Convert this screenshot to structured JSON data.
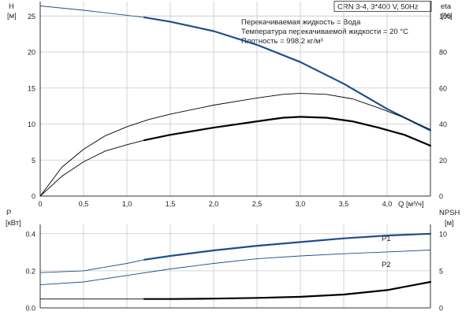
{
  "header": {
    "model": "CRN 3-4, 3*400 V, 50Hz",
    "notes": [
      "Перекачиваемая жидкость = Вода",
      "Температура перекачиваемой жидкости = 20 °C",
      "Плотность = 998.2 кг/м³"
    ]
  },
  "chart_data": [
    {
      "type": "line",
      "x_axis": {
        "label": "Q [м³/ч]",
        "range": [
          0,
          4.5
        ],
        "ticks": [
          "0",
          "0,5",
          "1,0",
          "1,5",
          "2,0",
          "2,5",
          "3,0",
          "3,5",
          "4,0"
        ],
        "tick_values": [
          0,
          0.5,
          1.0,
          1.5,
          2.0,
          2.5,
          3.0,
          3.5,
          4.0
        ]
      },
      "y_left": {
        "label_top": "H",
        "label_unit": "[м]",
        "range": [
          0,
          27
        ],
        "ticks": [
          "0",
          "5",
          "10",
          "15",
          "20",
          "25"
        ],
        "tick_values": [
          0,
          5,
          10,
          15,
          20,
          25
        ]
      },
      "y_right": {
        "label_top": "eta",
        "label_unit": "[%]",
        "range": [
          0,
          108
        ],
        "ticks": [
          "0",
          "20",
          "40",
          "60",
          "80",
          "100"
        ],
        "tick_values": [
          0,
          20,
          40,
          60,
          80,
          100
        ]
      },
      "series": [
        {
          "axis": "left",
          "color": "#1f4e8c",
          "style": "thin",
          "points": [
            [
              0,
              26.4
            ],
            [
              0.5,
              25.8
            ],
            [
              1.0,
              25.1
            ],
            [
              1.2,
              24.8
            ]
          ]
        },
        {
          "axis": "left",
          "color": "#1f4e8c",
          "style": "bold",
          "points": [
            [
              1.2,
              24.8
            ],
            [
              1.5,
              24.2
            ],
            [
              2.0,
              22.9
            ],
            [
              2.5,
              21.0
            ],
            [
              3.0,
              18.6
            ],
            [
              3.5,
              15.6
            ],
            [
              4.0,
              12.1
            ],
            [
              4.5,
              9.1
            ]
          ]
        },
        {
          "axis": "right",
          "color": "#000000",
          "style": "thin",
          "points": [
            [
              0,
              0
            ],
            [
              0.25,
              16
            ],
            [
              0.5,
              26
            ],
            [
              0.75,
              33.5
            ],
            [
              1.0,
              38.5
            ],
            [
              1.25,
              42.5
            ],
            [
              1.5,
              45.5
            ],
            [
              2.0,
              50.5
            ],
            [
              2.5,
              54.5
            ],
            [
              2.8,
              56.5
            ],
            [
              3.0,
              57
            ],
            [
              3.3,
              56.5
            ],
            [
              3.6,
              54
            ],
            [
              3.9,
              49
            ],
            [
              4.2,
              43.5
            ],
            [
              4.5,
              37
            ]
          ]
        },
        {
          "axis": "right",
          "color": "#000000",
          "style": "thin",
          "points": [
            [
              0,
              0
            ],
            [
              0.25,
              11
            ],
            [
              0.5,
              19
            ],
            [
              0.75,
              25
            ],
            [
              1.0,
              28.5
            ],
            [
              1.2,
              31
            ]
          ]
        },
        {
          "axis": "right",
          "color": "#000000",
          "style": "bold",
          "points": [
            [
              1.2,
              31
            ],
            [
              1.5,
              34
            ],
            [
              2.0,
              38
            ],
            [
              2.5,
              41.5
            ],
            [
              2.8,
              43.5
            ],
            [
              3.0,
              44
            ],
            [
              3.3,
              43.5
            ],
            [
              3.6,
              41.5
            ],
            [
              3.9,
              38
            ],
            [
              4.2,
              34
            ],
            [
              4.5,
              28
            ]
          ]
        }
      ]
    },
    {
      "type": "line",
      "x_axis": {
        "range": [
          0,
          4.5
        ]
      },
      "y_left": {
        "label_top": "P",
        "label_unit": "[кВт]",
        "range": [
          0,
          0.45
        ],
        "ticks": [
          "0.0",
          "0.2",
          "0.4"
        ],
        "tick_values": [
          0,
          0.2,
          0.4
        ]
      },
      "y_right": {
        "label_top": "NPSH",
        "label_unit": "[м]",
        "range": [
          0,
          11.25
        ],
        "ticks": [
          "0",
          "5",
          "10"
        ],
        "tick_values": [
          0,
          5,
          10
        ]
      },
      "series": [
        {
          "name": "P1",
          "axis": "left",
          "color": "#1f4e8c",
          "style": "thin",
          "points": [
            [
              0,
              0.19
            ],
            [
              0.5,
              0.2
            ],
            [
              1.0,
              0.24
            ],
            [
              1.2,
              0.26
            ]
          ]
        },
        {
          "name": "P1",
          "axis": "left",
          "color": "#1f4e8c",
          "style": "bold",
          "points": [
            [
              1.2,
              0.26
            ],
            [
              1.5,
              0.28
            ],
            [
              2.0,
              0.31
            ],
            [
              2.5,
              0.335
            ],
            [
              3.0,
              0.355
            ],
            [
              3.5,
              0.375
            ],
            [
              4.0,
              0.39
            ],
            [
              4.5,
              0.4
            ]
          ]
        },
        {
          "name": "P2",
          "axis": "left",
          "color": "#1f4e8c",
          "style": "thin",
          "points": [
            [
              0,
              0.125
            ],
            [
              0.5,
              0.14
            ],
            [
              1.0,
              0.175
            ],
            [
              1.5,
              0.21
            ],
            [
              2.0,
              0.24
            ],
            [
              2.5,
              0.265
            ],
            [
              3.0,
              0.28
            ],
            [
              3.5,
              0.292
            ],
            [
              4.0,
              0.302
            ],
            [
              4.5,
              0.312
            ]
          ]
        },
        {
          "axis": "right",
          "color": "#000000",
          "style": "thin",
          "points": [
            [
              0,
              1.2
            ],
            [
              1.2,
              1.2
            ]
          ]
        },
        {
          "axis": "right",
          "color": "#000000",
          "style": "bold",
          "points": [
            [
              1.2,
              1.2
            ],
            [
              1.5,
              1.2
            ],
            [
              2.0,
              1.25
            ],
            [
              2.5,
              1.35
            ],
            [
              3.0,
              1.5
            ],
            [
              3.5,
              1.8
            ],
            [
              4.0,
              2.4
            ],
            [
              4.5,
              3.5
            ]
          ]
        }
      ],
      "line_labels": [
        "P1",
        "P2"
      ]
    }
  ]
}
